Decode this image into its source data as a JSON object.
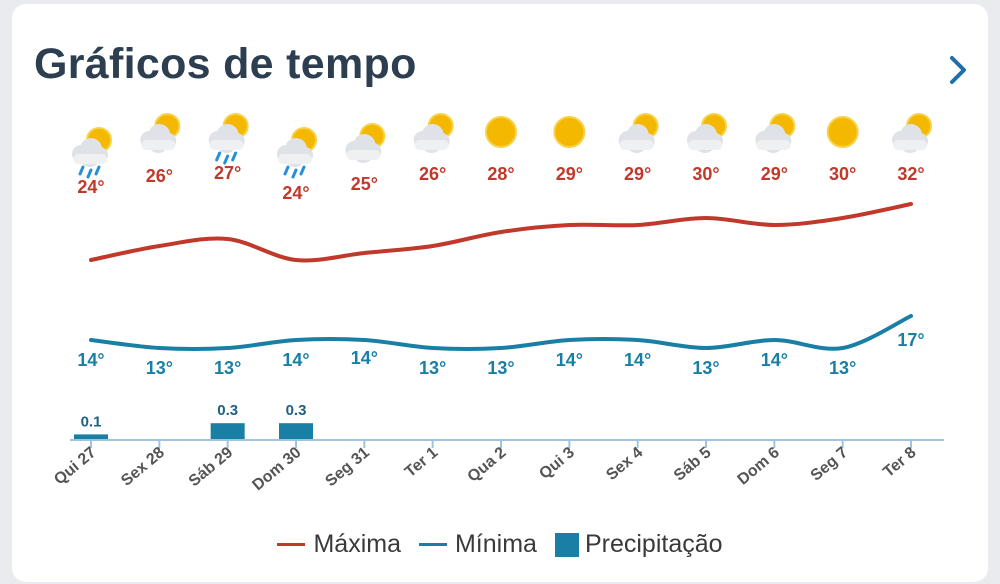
{
  "header": {
    "title": "Gráficos de tempo",
    "next_icon": "chevron-right-icon"
  },
  "colors": {
    "max": "#c0392b",
    "min": "#1a7fa5",
    "precip": "#1a7fa5",
    "axis": "#9fc4e0",
    "title": "#2c3e50"
  },
  "chart_data": {
    "type": "line",
    "categories": [
      "Qui 27",
      "Sex 28",
      "Sáb 29",
      "Dom 30",
      "Seg 31",
      "Ter 1",
      "Qua 2",
      "Qui 3",
      "Sex 4",
      "Sáb 5",
      "Dom 6",
      "Seg 7",
      "Ter 8"
    ],
    "conditions": [
      "rain-partly-cloudy",
      "partly-cloudy",
      "rain-partly-cloudy",
      "rain-partly-cloudy",
      "partly-cloudy",
      "partly-cloudy",
      "sunny",
      "sunny",
      "partly-cloudy",
      "partly-cloudy",
      "partly-cloudy",
      "sunny",
      "partly-cloudy"
    ],
    "series": [
      {
        "name": "Máxima",
        "unit": "°",
        "values": [
          24,
          26,
          27,
          24,
          25,
          26,
          28,
          29,
          29,
          30,
          29,
          30,
          32
        ]
      },
      {
        "name": "Mínima",
        "unit": "°",
        "values": [
          14,
          13,
          13,
          14,
          14,
          13,
          13,
          14,
          14,
          13,
          14,
          13,
          17
        ]
      },
      {
        "name": "Precipitação",
        "values": [
          0.1,
          0,
          0.3,
          0.3,
          0,
          0,
          0,
          0,
          0,
          0,
          0,
          0,
          0
        ],
        "labels": [
          "0.1",
          "",
          "0.3",
          "0.3",
          "",
          "",
          "",
          "",
          "",
          "",
          "",
          "",
          ""
        ]
      }
    ],
    "legend_position": "bottom",
    "grid": false
  },
  "legend": {
    "max": "Máxima",
    "min": "Mínima",
    "precip": "Precipitação"
  }
}
